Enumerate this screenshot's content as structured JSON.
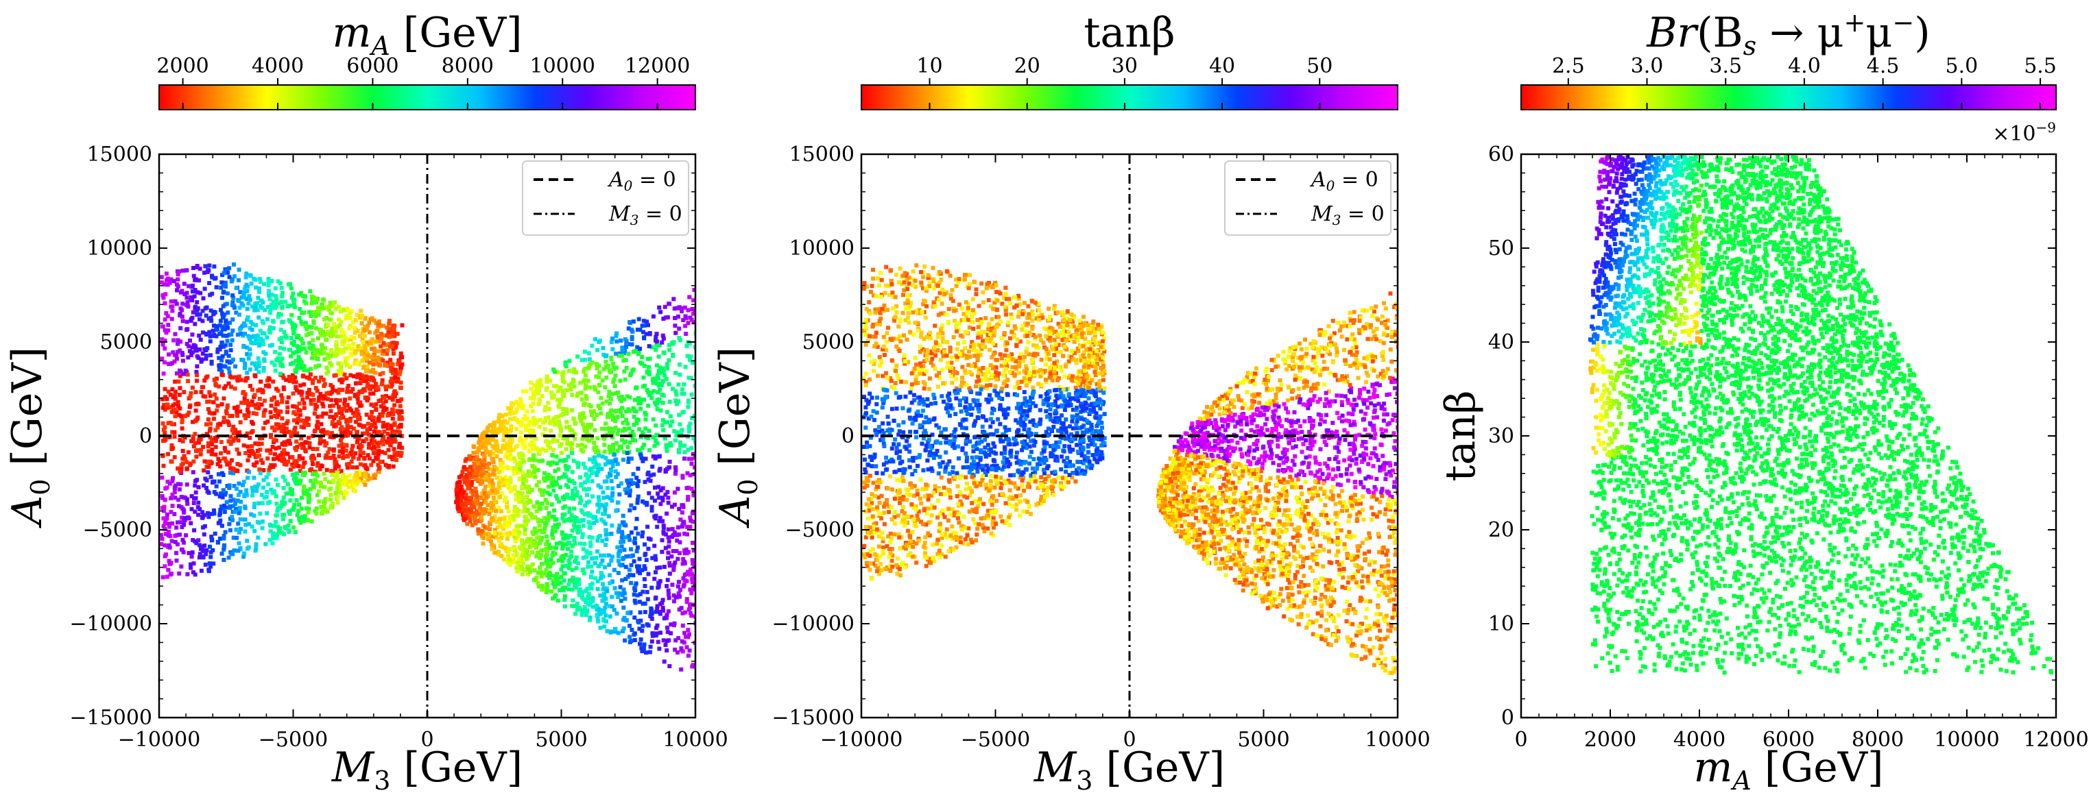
{
  "colormap": [
    "#ff0000",
    "#ff8000",
    "#ffff00",
    "#80ff00",
    "#00ff40",
    "#00ffc0",
    "#00c0ff",
    "#0040ff",
    "#6000ff",
    "#c000ff",
    "#ff00ff"
  ],
  "axis_color": "#000000",
  "chart_data": [
    {
      "type": "scatter",
      "colorbar": {
        "title": "m_A [GeV]",
        "range": [
          1500,
          12800
        ],
        "ticks": [
          2000,
          4000,
          6000,
          8000,
          10000,
          12000
        ]
      },
      "xlabel": "M_3 [GeV]",
      "ylabel": "A_0 [GeV]",
      "xlim": [
        -10000,
        10000
      ],
      "ylim": [
        -15000,
        15000
      ],
      "xticks": [
        -10000,
        -5000,
        0,
        5000,
        10000
      ],
      "yticks": [
        -15000,
        -10000,
        -5000,
        0,
        5000,
        10000,
        15000
      ],
      "legend": {
        "position": "top-right",
        "entries": [
          "A_0 = 0",
          "M_3 = 0"
        ]
      },
      "reference_lines": {
        "horizontal_A0": 0,
        "vertical_M3": 0
      },
      "regions": [
        {
          "name": "left-lobe",
          "x": [
            -10000,
            -1000
          ],
          "y_top_min": 3000,
          "y_top_max": 9500,
          "y_bottom_min": -8000,
          "y_bottom_max": -1500,
          "color_var": "m_A ~ 1500-12000 (increasing with |M_3|); central band red"
        },
        {
          "name": "right-lobe",
          "x": [
            1000,
            10000
          ],
          "y_top_min": -4500,
          "y_top_max": 8500,
          "y_bottom_min": -13500,
          "y_bottom_max": -2000,
          "color_var": "m_A ~ 1500-12000 (increasing with M_3); central band yellow-green"
        }
      ]
    },
    {
      "type": "scatter",
      "colorbar": {
        "title": "tanβ",
        "range": [
          3,
          58
        ],
        "ticks": [
          10,
          20,
          30,
          40,
          50
        ]
      },
      "xlabel": "M_3 [GeV]",
      "ylabel": "A_0 [GeV]",
      "xlim": [
        -10000,
        10000
      ],
      "ylim": [
        -15000,
        15000
      ],
      "xticks": [
        -10000,
        -5000,
        0,
        5000,
        10000
      ],
      "yticks": [
        -15000,
        -10000,
        -5000,
        0,
        5000,
        10000,
        15000
      ],
      "legend": {
        "position": "top-right",
        "entries": [
          "A_0 = 0",
          "M_3 = 0"
        ]
      },
      "reference_lines": {
        "horizontal_A0": 0,
        "vertical_M3": 0
      },
      "regions": [
        {
          "name": "left-lobe",
          "color_var": "tanβ ~ 5-15 outer, ~40 central band"
        },
        {
          "name": "right-lobe",
          "color_var": "tanβ ~ 5-15 outer, 50-58 central wedge"
        }
      ]
    },
    {
      "type": "scatter",
      "colorbar": {
        "title": "Br(B_s → μ⁺μ⁻)",
        "range": [
          2.2,
          5.6
        ],
        "ticks": [
          2.5,
          3.0,
          3.5,
          4.0,
          4.5,
          5.0,
          5.5
        ],
        "multiplier": "×10⁻⁹"
      },
      "xlabel": "m_A [GeV]",
      "ylabel": "tanβ",
      "xlim": [
        0,
        12000
      ],
      "ylim": [
        0,
        60
      ],
      "xticks": [
        0,
        2000,
        4000,
        6000,
        8000,
        10000,
        12000
      ],
      "yticks": [
        0,
        10,
        20,
        30,
        40,
        50,
        60
      ],
      "region": {
        "mA_min": 1500,
        "mA_max": 12000,
        "tanb_min": 5,
        "tanb_max": 60,
        "color_var": "Br ~ 3.6e-9 (green) bulk; up to 5.5e-9 at low m_A high tanβ"
      }
    }
  ],
  "labels": {
    "p1_cbar_title_main": "m",
    "p1_cbar_title_sub": "A",
    "p1_cbar_title_unit": " [GeV]",
    "p2_cbar_title": "tanβ",
    "p3_cbar_title_a": "Br",
    "p3_cbar_title_b": "(B",
    "p3_cbar_title_c": "s",
    "p3_cbar_title_d": " → μ",
    "p3_cbar_title_e": "+",
    "p3_cbar_title_f": "μ",
    "p3_cbar_title_g": "−",
    "p3_cbar_title_h": ")",
    "mult_base": "×10",
    "mult_exp": "−9",
    "xlab_M": "M",
    "xlab_M_sub": "3",
    "xlab_unit": " [GeV]",
    "ylab_A": "A",
    "ylab_A_sub": "0",
    "ylab_unit": " [GeV]",
    "p3_xlab_m": "m",
    "p3_xlab_sub": "A",
    "p3_xlab_unit": " [GeV]",
    "p3_ylab": "tanβ",
    "legend_dash_A": "A",
    "legend_dash_sub": "0",
    "legend_dash_eq": " = 0",
    "legend_dot_M": "M",
    "legend_dot_sub": "3",
    "legend_dot_eq": " = 0"
  }
}
